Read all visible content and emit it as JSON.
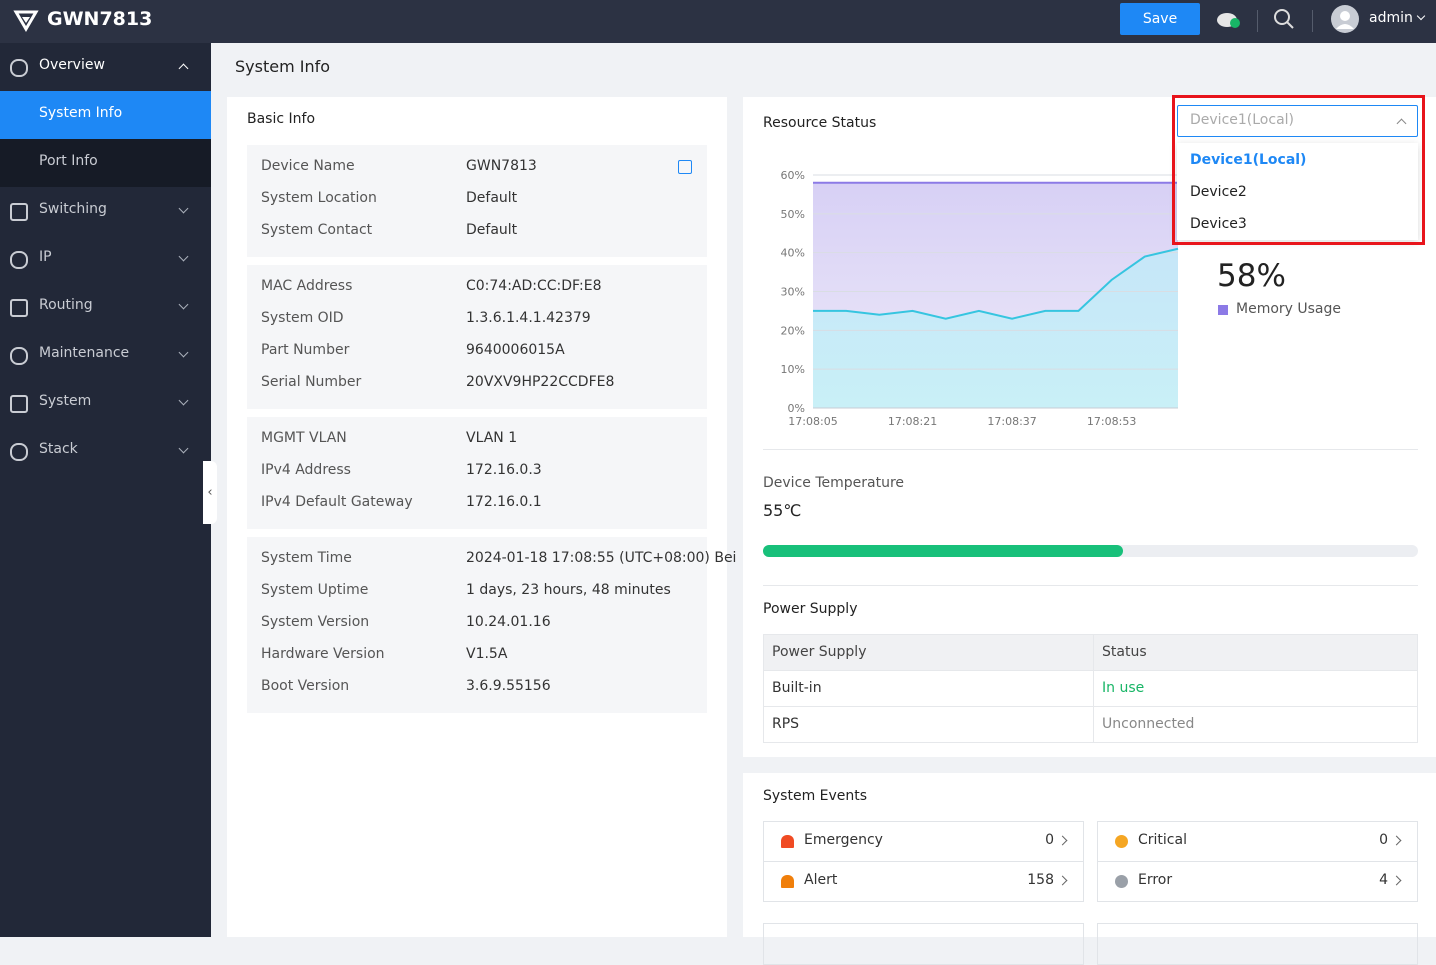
{
  "header": {
    "brand": "GWN7813",
    "save_button": "Save",
    "user": "admin"
  },
  "sidebar": {
    "items": [
      {
        "label": "Overview",
        "expanded": true,
        "children": [
          "System Info",
          "Port Info"
        ]
      },
      {
        "label": "Switching"
      },
      {
        "label": "IP"
      },
      {
        "label": "Routing"
      },
      {
        "label": "Maintenance"
      },
      {
        "label": "System"
      },
      {
        "label": "Stack"
      }
    ]
  },
  "page_title": "System Info",
  "basic_info": {
    "title": "Basic Info",
    "groups": [
      [
        [
          "Device Name",
          "GWN7813"
        ],
        [
          "System Location",
          "Default"
        ],
        [
          "System Contact",
          "Default"
        ]
      ],
      [
        [
          "MAC Address",
          "C0:74:AD:CC:DF:E8"
        ],
        [
          "System OID",
          "1.3.6.1.4.1.42379"
        ],
        [
          "Part Number",
          "9640006015A"
        ],
        [
          "Serial Number",
          "20VXV9HP22CCDFE8"
        ]
      ],
      [
        [
          "MGMT VLAN",
          "VLAN 1"
        ],
        [
          "IPv4 Address",
          "172.16.0.3"
        ],
        [
          "IPv4 Default Gateway",
          "172.16.0.1"
        ]
      ],
      [
        [
          "System Time",
          "2024-01-18 17:08:55 (UTC+08:00) Bei"
        ],
        [
          "System Uptime",
          "1 days, 23 hours, 48 minutes"
        ],
        [
          "System Version",
          "10.24.01.16"
        ],
        [
          "Hardware Version",
          "V1.5A"
        ],
        [
          "Boot Version",
          "3.6.9.55156"
        ]
      ]
    ]
  },
  "device_select": {
    "selected": "Device1(Local)",
    "options": [
      "Device1(Local)",
      "Device2",
      "Device3"
    ]
  },
  "chart_data": {
    "type": "area",
    "title": "Resource Status",
    "categories": [
      "17:08:05",
      null,
      null,
      "17:08:21",
      null,
      null,
      "17:08:37",
      null,
      null,
      "17:08:53",
      null,
      null
    ],
    "series": [
      {
        "name": "Memory Usage",
        "color": "#8c7ae6",
        "values": [
          58,
          58,
          58,
          58,
          58,
          58,
          58,
          58,
          58,
          58,
          58,
          58
        ]
      },
      {
        "color": "#36c5e0",
        "values": [
          25,
          25,
          24,
          25,
          23,
          25,
          23,
          25,
          25,
          33,
          39,
          41
        ]
      }
    ],
    "annotation": "58%",
    "ylim": [
      0,
      60
    ],
    "yticks": [
      {
        "value": 0,
        "label": "0%"
      },
      {
        "value": 10,
        "label": "10%"
      },
      {
        "value": 20,
        "label": "20%"
      },
      {
        "value": 30,
        "label": "30%"
      },
      {
        "value": 40,
        "label": "40%"
      },
      {
        "value": 50,
        "label": "50%"
      },
      {
        "value": 60,
        "label": "60%"
      }
    ],
    "grid": true
  },
  "temperature": {
    "label": "Device Temperature",
    "value": 55,
    "value_label": "55℃"
  },
  "power_supply": {
    "title": "Power Supply",
    "headers": [
      "Power Supply",
      "Status"
    ],
    "rows": [
      [
        "Built-in",
        "In use"
      ],
      [
        "RPS",
        "Unconnected"
      ]
    ]
  },
  "system_events": {
    "title": "System Events",
    "items": [
      {
        "name": "Emergency",
        "count": 0
      },
      {
        "name": "Critical",
        "count": 0
      },
      {
        "name": "Alert",
        "count": 158
      },
      {
        "name": "Error",
        "count": 4
      }
    ]
  }
}
